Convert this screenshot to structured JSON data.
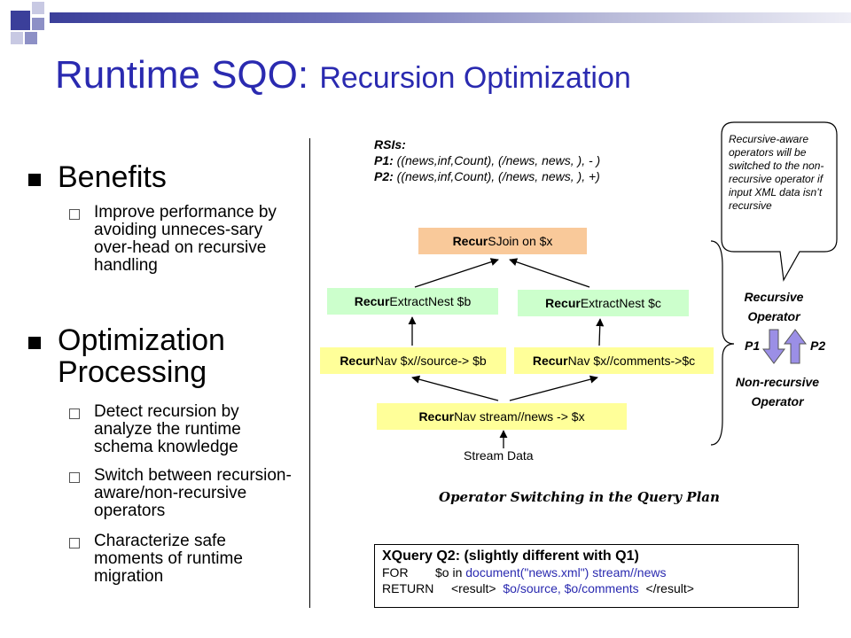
{
  "title": {
    "main": "Runtime SQO: ",
    "sub": "Recursion Optimization"
  },
  "benefits": {
    "heading": "Benefits",
    "items": [
      "Improve performance by avoiding unneces-sary over-head on recursive handling"
    ]
  },
  "optimization": {
    "heading_line1": "Optimization",
    "heading_line2": "Processing",
    "items": [
      "Detect recursion by analyze the runtime schema knowledge",
      "Switch between recursion-aware/non-recursive operators",
      "Characterize safe moments of runtime migration"
    ]
  },
  "rsis": {
    "label": "RSIs:",
    "p1_label": "P1:",
    "p1_value": " ((news,inf,Count), (/news, news, ), - )",
    "p2_label": "P2:",
    "p2_value": " ((news,inf,Count), (/news, news, ), +)"
  },
  "plan": {
    "sjoin": {
      "bold": "Recur",
      "rest": "SJoin on $x"
    },
    "extract_b": {
      "bold": "Recur",
      "rest": "ExtractNest $b"
    },
    "extract_c": {
      "bold": "Recur",
      "rest": "ExtractNest $c"
    },
    "nav_b": {
      "bold": "Recur",
      "rest": "Nav $x//source-> $b"
    },
    "nav_c": {
      "bold": "Recur",
      "rest": "Nav $x//comments->$c"
    },
    "nav_x": {
      "bold": "Recur",
      "rest": "Nav stream//news -> $x"
    },
    "stream": "Stream Data"
  },
  "callout": "Recursive-aware operators will be switched to the non-recursive operator if input XML data isn’t recursive",
  "operators": {
    "recursive_line1": "Recursive",
    "recursive_line2": "Operator",
    "p1": "P1",
    "p2": "P2",
    "nonrec_line1": "Non-recursive",
    "nonrec_line2": "Operator"
  },
  "caption": "Operator Switching in the Query Plan",
  "xquery": {
    "heading": "XQuery Q2: (slightly different with Q1)",
    "for_kw": "FOR",
    "for_var": "$o in ",
    "for_expr": "document(\"news.xml\") stream//news",
    "return_kw": "RETURN",
    "result_open": "<result>",
    "return_expr": "$o/source, $o/comments",
    "result_close": "</result>"
  },
  "colors": {
    "title": "#2a2ab0",
    "yellow": "#ffff99",
    "green": "#ccffcc",
    "orange": "#f9c99a",
    "arrow_blue": "#9b8fe6"
  }
}
